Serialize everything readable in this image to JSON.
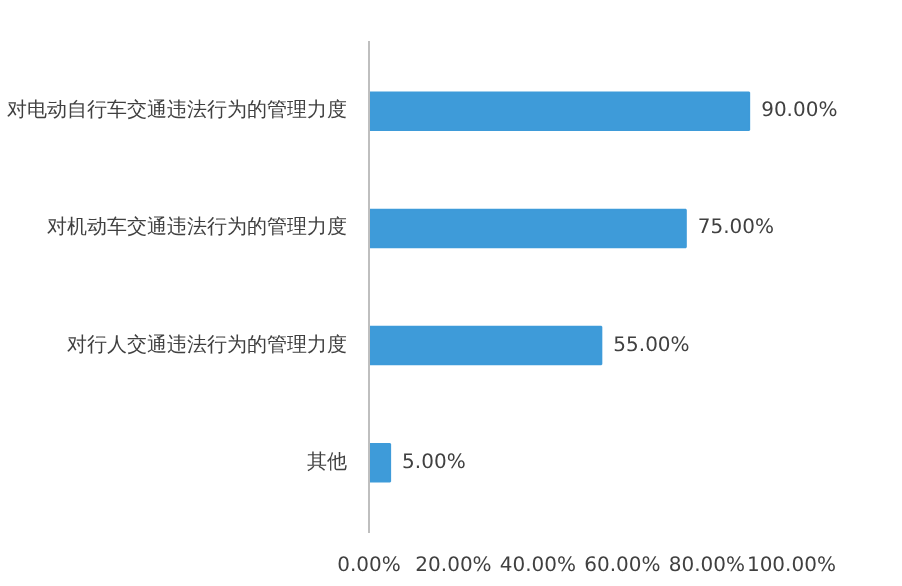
{
  "chart_data": {
    "type": "bar",
    "orientation": "horizontal",
    "categories": [
      "对电动自行车交通违法行为的管理力度",
      "对机动车交通违法行为的管理力度",
      "对行人交通违法行为的管理力度",
      "其他"
    ],
    "values": [
      90,
      75,
      55,
      5
    ],
    "value_labels": [
      "90.00%",
      "75.00%",
      "55.00%",
      "5.00%"
    ],
    "color": "#3e9bd9",
    "xlim": [
      0,
      100
    ],
    "xticks": [
      {
        "value": 0,
        "label": "0.00%"
      },
      {
        "value": 20,
        "label": "20.00%"
      },
      {
        "value": 40,
        "label": "40.00%"
      },
      {
        "value": 60,
        "label": "60.00%"
      },
      {
        "value": 80,
        "label": "80.00%"
      },
      {
        "value": 100,
        "label": "100.00%"
      }
    ],
    "grid": false
  }
}
